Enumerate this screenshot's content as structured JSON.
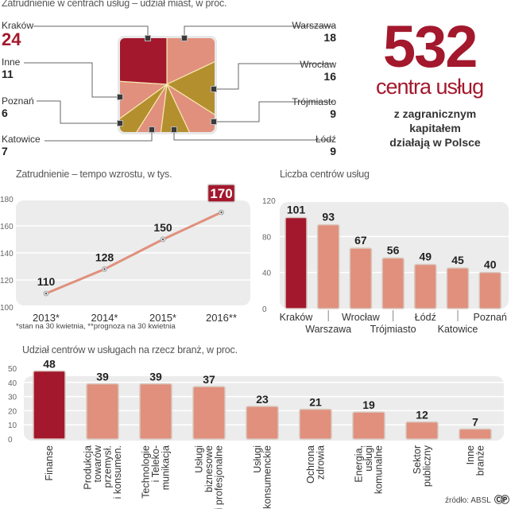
{
  "headline": {
    "number": "532",
    "subtitle": "centra usług",
    "desc_lines": [
      "z zagranicznym",
      "kapitałem",
      "działają w Polsce"
    ]
  },
  "footer": {
    "source": "źródło: ABSL",
    "cc_icon": "creative-commons-icon"
  },
  "colors": {
    "accent": "#a3182c",
    "salmon": "#e0907c",
    "olive": "#b38f2e",
    "panel": "#ececec"
  },
  "chart_data": [
    {
      "id": "pie",
      "type": "pie",
      "title": "Zatrudnienie w centrach usług – udział miast, w proc.",
      "categories": [
        "Kraków",
        "Warszawa",
        "Wrocław",
        "Trójmiasto",
        "Łódź",
        "Katowice",
        "Poznań",
        "Inne"
      ],
      "values": [
        24,
        18,
        16,
        9,
        9,
        7,
        6,
        11
      ],
      "labels": [
        {
          "city": "Kraków",
          "value": "24"
        },
        {
          "city": "Warszawa",
          "value": "18"
        },
        {
          "city": "Wrocław",
          "value": "16"
        },
        {
          "city": "Trójmiasto",
          "value": "9"
        },
        {
          "city": "Łódź",
          "value": "9"
        },
        {
          "city": "Katowice",
          "value": "7"
        },
        {
          "city": "Poznań",
          "value": "6"
        },
        {
          "city": "Inne",
          "value": "11"
        }
      ]
    },
    {
      "id": "line",
      "type": "line",
      "title": "Zatrudnienie – tempo wzrostu, w tys.",
      "x": [
        "2013*",
        "2014*",
        "2015*",
        "2016**"
      ],
      "values": [
        110,
        128,
        150,
        170
      ],
      "ylim": [
        100,
        180
      ],
      "yticks": [
        100,
        120,
        140,
        160,
        180
      ],
      "highlight_last": true,
      "footnote": "*stan na 30 kwietnia, **prognoza na 30 kwietnia",
      "grid": true
    },
    {
      "id": "cities",
      "type": "bar",
      "title": "Liczba centrów usług",
      "categories": [
        "Kraków",
        "Warszawa",
        "Wrocław",
        "Trójmiasto",
        "Łódź",
        "Katowice",
        "Poznań"
      ],
      "values": [
        101,
        93,
        67,
        56,
        49,
        45,
        40
      ],
      "ylim": [
        0,
        120
      ],
      "yticks": [
        0,
        40,
        80,
        120
      ],
      "highlight_index": 0,
      "grid": true
    },
    {
      "id": "industries",
      "type": "bar",
      "title": "Udział centrów w usługach na rzecz branż, w proc.",
      "categories": [
        [
          "Finanse"
        ],
        [
          "Produkcja",
          "towarów",
          "przemysł.",
          "i konsumen."
        ],
        [
          "Technologie",
          "i Teleko-",
          "munikacja"
        ],
        [
          "Usługi",
          "biznesowe",
          "i profesjonalne"
        ],
        [
          "Usługi",
          "konsumenckie"
        ],
        [
          "Ochrona",
          "zdrowia"
        ],
        [
          "Energia,",
          "usługi",
          "komunalne"
        ],
        [
          "Sektor",
          "publiczny"
        ],
        [
          "Inne",
          "branże"
        ]
      ],
      "values": [
        48,
        39,
        39,
        37,
        23,
        21,
        19,
        12,
        7
      ],
      "ylim": [
        0,
        50
      ],
      "yticks": [
        0,
        10,
        20,
        30,
        40,
        50
      ],
      "highlight_index": 0,
      "grid": true
    }
  ]
}
